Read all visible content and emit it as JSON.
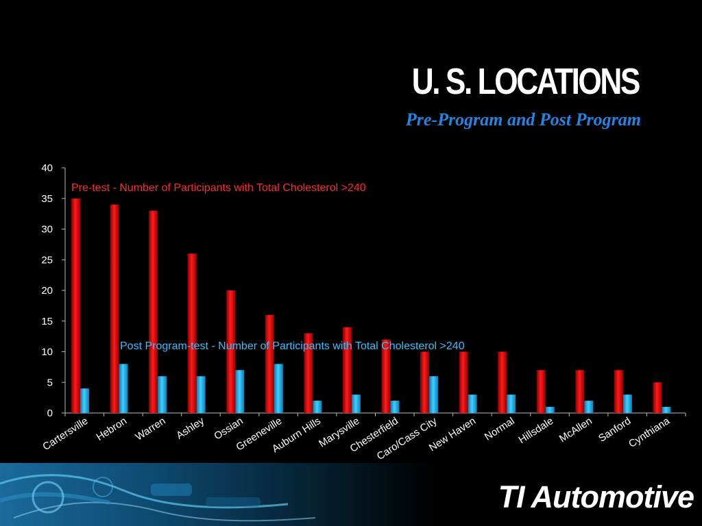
{
  "slide": {
    "title": "U. S. LOCATIONS",
    "subtitle": "Pre-Program and Post Program",
    "brand": "TI Automotive"
  },
  "colors": {
    "pre": "#e20000",
    "post": "#19b6f0",
    "annotation_pre": "#ff2a2a",
    "annotation_post": "#35c0ff",
    "subtitle": "#1f86e6"
  },
  "chart_data": {
    "type": "bar",
    "categories": [
      "Cartersville",
      "Hebron",
      "Warren",
      "Ashley",
      "Ossian",
      "Greeneville",
      "Auburn Hills",
      "Marysville",
      "Chesterfield",
      "Caro/Cass City",
      "New Haven",
      "Normal",
      "Hillsdale",
      "McAllen",
      "Sanford",
      "Cynthiana"
    ],
    "series": [
      {
        "name": "Pre-test - Number of Participants with Total Cholesterol >240",
        "values": [
          35,
          34,
          33,
          26,
          20,
          16,
          13,
          14,
          12,
          10,
          10,
          10,
          7,
          7,
          7,
          5
        ]
      },
      {
        "name": "Post Program-test - Number of Participants with Total Cholesterol >240",
        "values": [
          4,
          8,
          6,
          6,
          7,
          8,
          2,
          3,
          2,
          6,
          3,
          3,
          1,
          2,
          3,
          1
        ]
      }
    ],
    "ylim": [
      0,
      40
    ],
    "yticks": [
      0,
      5,
      10,
      15,
      20,
      25,
      30,
      35,
      40
    ],
    "grid": false
  }
}
